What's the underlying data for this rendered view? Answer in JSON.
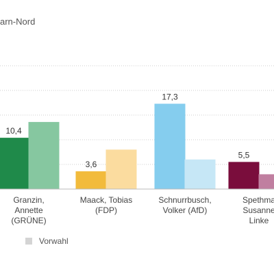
{
  "header": {
    "title_fragment": "arn-Nord"
  },
  "legend": {
    "items": [
      {
        "label": "Vorwahl",
        "color": "#d4d4d4"
      }
    ]
  },
  "chart_data": {
    "type": "bar",
    "title": "arn-Nord",
    "xlabel": "",
    "ylabel": "",
    "ylim": [
      0,
      30
    ],
    "grid": true,
    "legend_position": "bottom-left",
    "categories": [
      [
        "Granzin,",
        "Annette",
        "(GRÜNE)"
      ],
      [
        "Maack, Tobias",
        "(FDP)"
      ],
      [
        "Schnurrbusch,",
        "Volker (AfD)"
      ],
      [
        "Spethma",
        "Susanne",
        "Linke"
      ]
    ],
    "series": [
      {
        "name": "",
        "values": [
          10.4,
          3.6,
          17.3,
          5.5
        ],
        "colors": [
          "#1f8a4a",
          "#f2bb3c",
          "#85cdee",
          "#7a0d3c"
        ],
        "labels": [
          "10,4",
          "3,6",
          "17,3",
          "5,5"
        ]
      },
      {
        "name": "Vorwahl",
        "values": [
          13.6,
          8.0,
          6.0,
          3.0
        ],
        "colors": [
          "#86c7a0",
          "#fbdc9f",
          "#c6e7f6",
          "#c07fa0"
        ]
      }
    ]
  }
}
